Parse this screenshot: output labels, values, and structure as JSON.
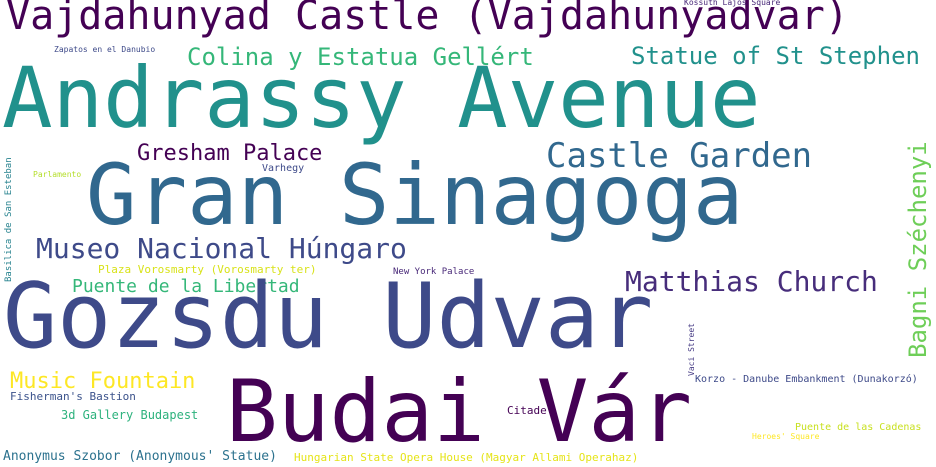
{
  "words": [
    {
      "text": "Vajdahunyad Castle (Vajdahunyadvar)",
      "color": "#440154"
    },
    {
      "text": "Kossuth Lajos Square",
      "color": "#482878"
    },
    {
      "text": "Zapatos en el Danubio",
      "color": "#3e4a89"
    },
    {
      "text": "Colina y Estatua Gellért",
      "color": "#35b779"
    },
    {
      "text": "Statue of St Stephen",
      "color": "#21918c"
    },
    {
      "text": "Andrassy Avenue",
      "color": "#21918c"
    },
    {
      "text": "Gresham Palace",
      "color": "#440154"
    },
    {
      "text": "Castle Garden",
      "color": "#31688e"
    },
    {
      "text": "Parlamento",
      "color": "#b5de2b"
    },
    {
      "text": "Varhegy",
      "color": "#3e4a89"
    },
    {
      "text": "Gran Sinagoga",
      "color": "#31688e"
    },
    {
      "text": "Bagni Széchenyi",
      "color": "#6ece58"
    },
    {
      "text": "Basilica de San Esteban",
      "color": "#26828e"
    },
    {
      "text": "Museo Nacional Húngaro",
      "color": "#3e4a89"
    },
    {
      "text": "Plaza Vorosmarty (Vorosmarty ter)",
      "color": "#d8e219"
    },
    {
      "text": "New York Palace",
      "color": "#482878"
    },
    {
      "text": "Matthias Church",
      "color": "#472d7b"
    },
    {
      "text": "Puente de la Libertad",
      "color": "#35b779"
    },
    {
      "text": "Gozsdu Udvar",
      "color": "#3e4a89"
    },
    {
      "text": "Vaci Street",
      "color": "#443983"
    },
    {
      "text": "Music Fountain",
      "color": "#fde725"
    },
    {
      "text": "Korzo - Danube Embankment (Dunakorzó)",
      "color": "#3e4a89"
    },
    {
      "text": "Fisherman's Bastion",
      "color": "#3b528b"
    },
    {
      "text": "Budai Vár",
      "color": "#440154"
    },
    {
      "text": "3d Gallery Budapest",
      "color": "#2db27d"
    },
    {
      "text": "Citadel",
      "color": "#440154"
    },
    {
      "text": "Puente de las Cadenas",
      "color": "#c8e020"
    },
    {
      "text": "Heroes' Square",
      "color": "#fde725"
    },
    {
      "text": "Anonymus Szobor (Anonymous' Statue)",
      "color": "#2c728e"
    },
    {
      "text": "Hungarian State Opera House (Magyar Allami Operahaz)",
      "color": "#e5e419"
    }
  ]
}
